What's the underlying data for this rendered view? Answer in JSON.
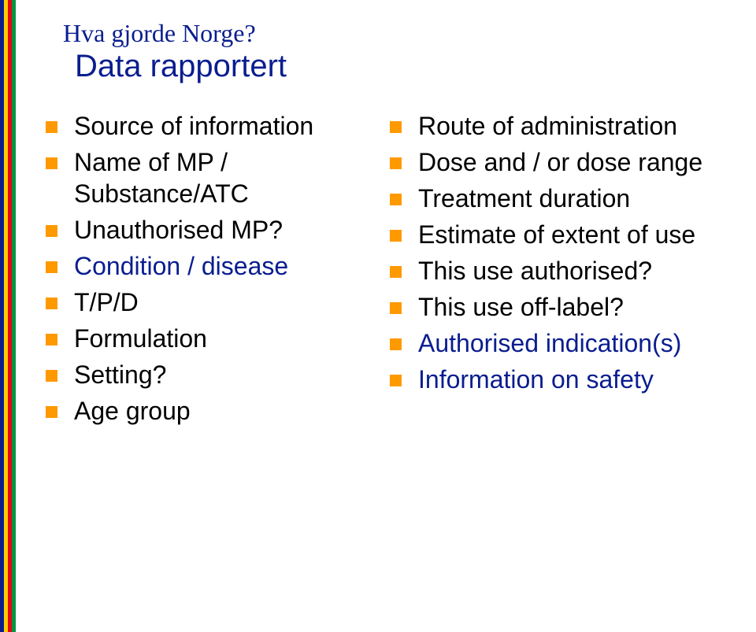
{
  "stripes": [
    "#0a1d8f",
    "#ffcc00",
    "#e30613",
    "#009640"
  ],
  "title": "Hva gjorde Norge?",
  "subtitle": "Data rapportert",
  "colors": {
    "title": "#0a1d8f",
    "text_black": "#000000",
    "text_blue": "#0a1d8f",
    "bullet": "#ff9900",
    "background": "#ffffff"
  },
  "leftItems": [
    {
      "text": "Source of information",
      "color": "black"
    },
    {
      "text": "Name of MP / Substance/ATC",
      "color": "black"
    },
    {
      "text": "Unauthorised MP?",
      "color": "black"
    },
    {
      "text": "Condition / disease",
      "color": "blue"
    },
    {
      "text": "T/P/D",
      "color": "black"
    },
    {
      "text": "Formulation",
      "color": "black"
    },
    {
      "text": "Setting?",
      "color": "black"
    },
    {
      "text": "Age group",
      "color": "black"
    }
  ],
  "rightItems": [
    {
      "text": "Route of administration",
      "color": "black"
    },
    {
      "text": "Dose and / or dose range",
      "color": "black"
    },
    {
      "text": "Treatment duration",
      "color": "black"
    },
    {
      "text": "Estimate of extent of use",
      "color": "black"
    },
    {
      "text": "This use authorised?",
      "color": "black"
    },
    {
      "text": "This use off-label?",
      "color": "black"
    },
    {
      "text": "Authorised indication(s)",
      "color": "blue"
    },
    {
      "text": "Information on safety",
      "color": "blue"
    }
  ]
}
